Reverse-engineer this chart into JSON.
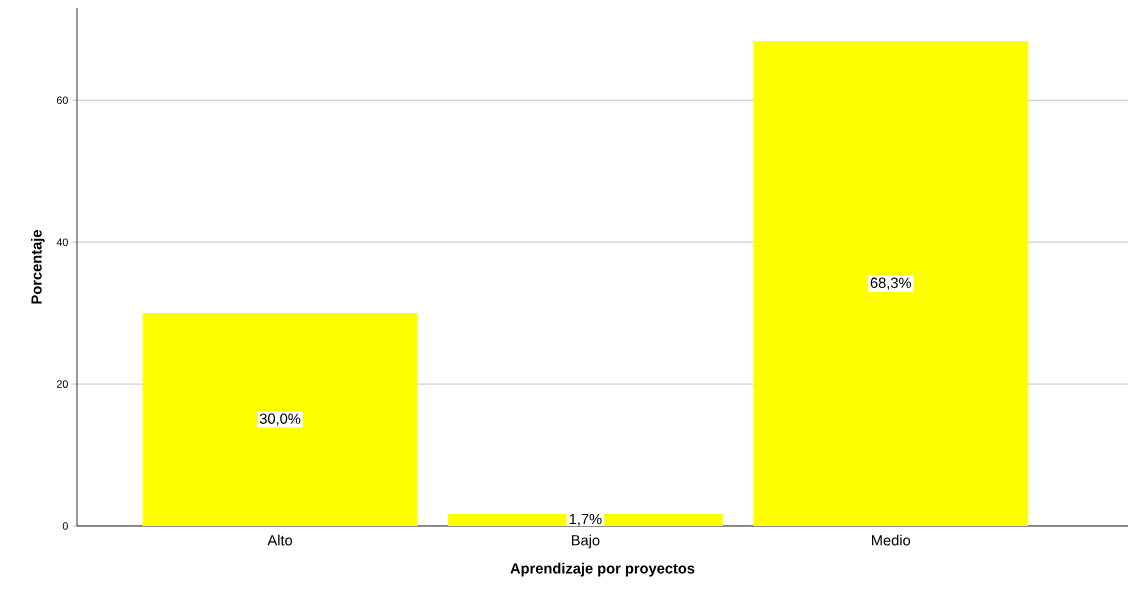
{
  "chart_data": {
    "type": "bar",
    "xlabel": "Aprendizaje por proyectos",
    "ylabel": "Porcentaje",
    "categories": [
      "Alto",
      "Bajo",
      "Medio"
    ],
    "values": [
      30.0,
      1.7,
      68.3
    ],
    "color": "#ffff00",
    "value_labels": [
      "30,0%",
      "1,7%",
      "68,3%"
    ],
    "ylim": [
      0,
      73
    ],
    "yticks": [
      0,
      20,
      40,
      60
    ],
    "grid": "y"
  }
}
